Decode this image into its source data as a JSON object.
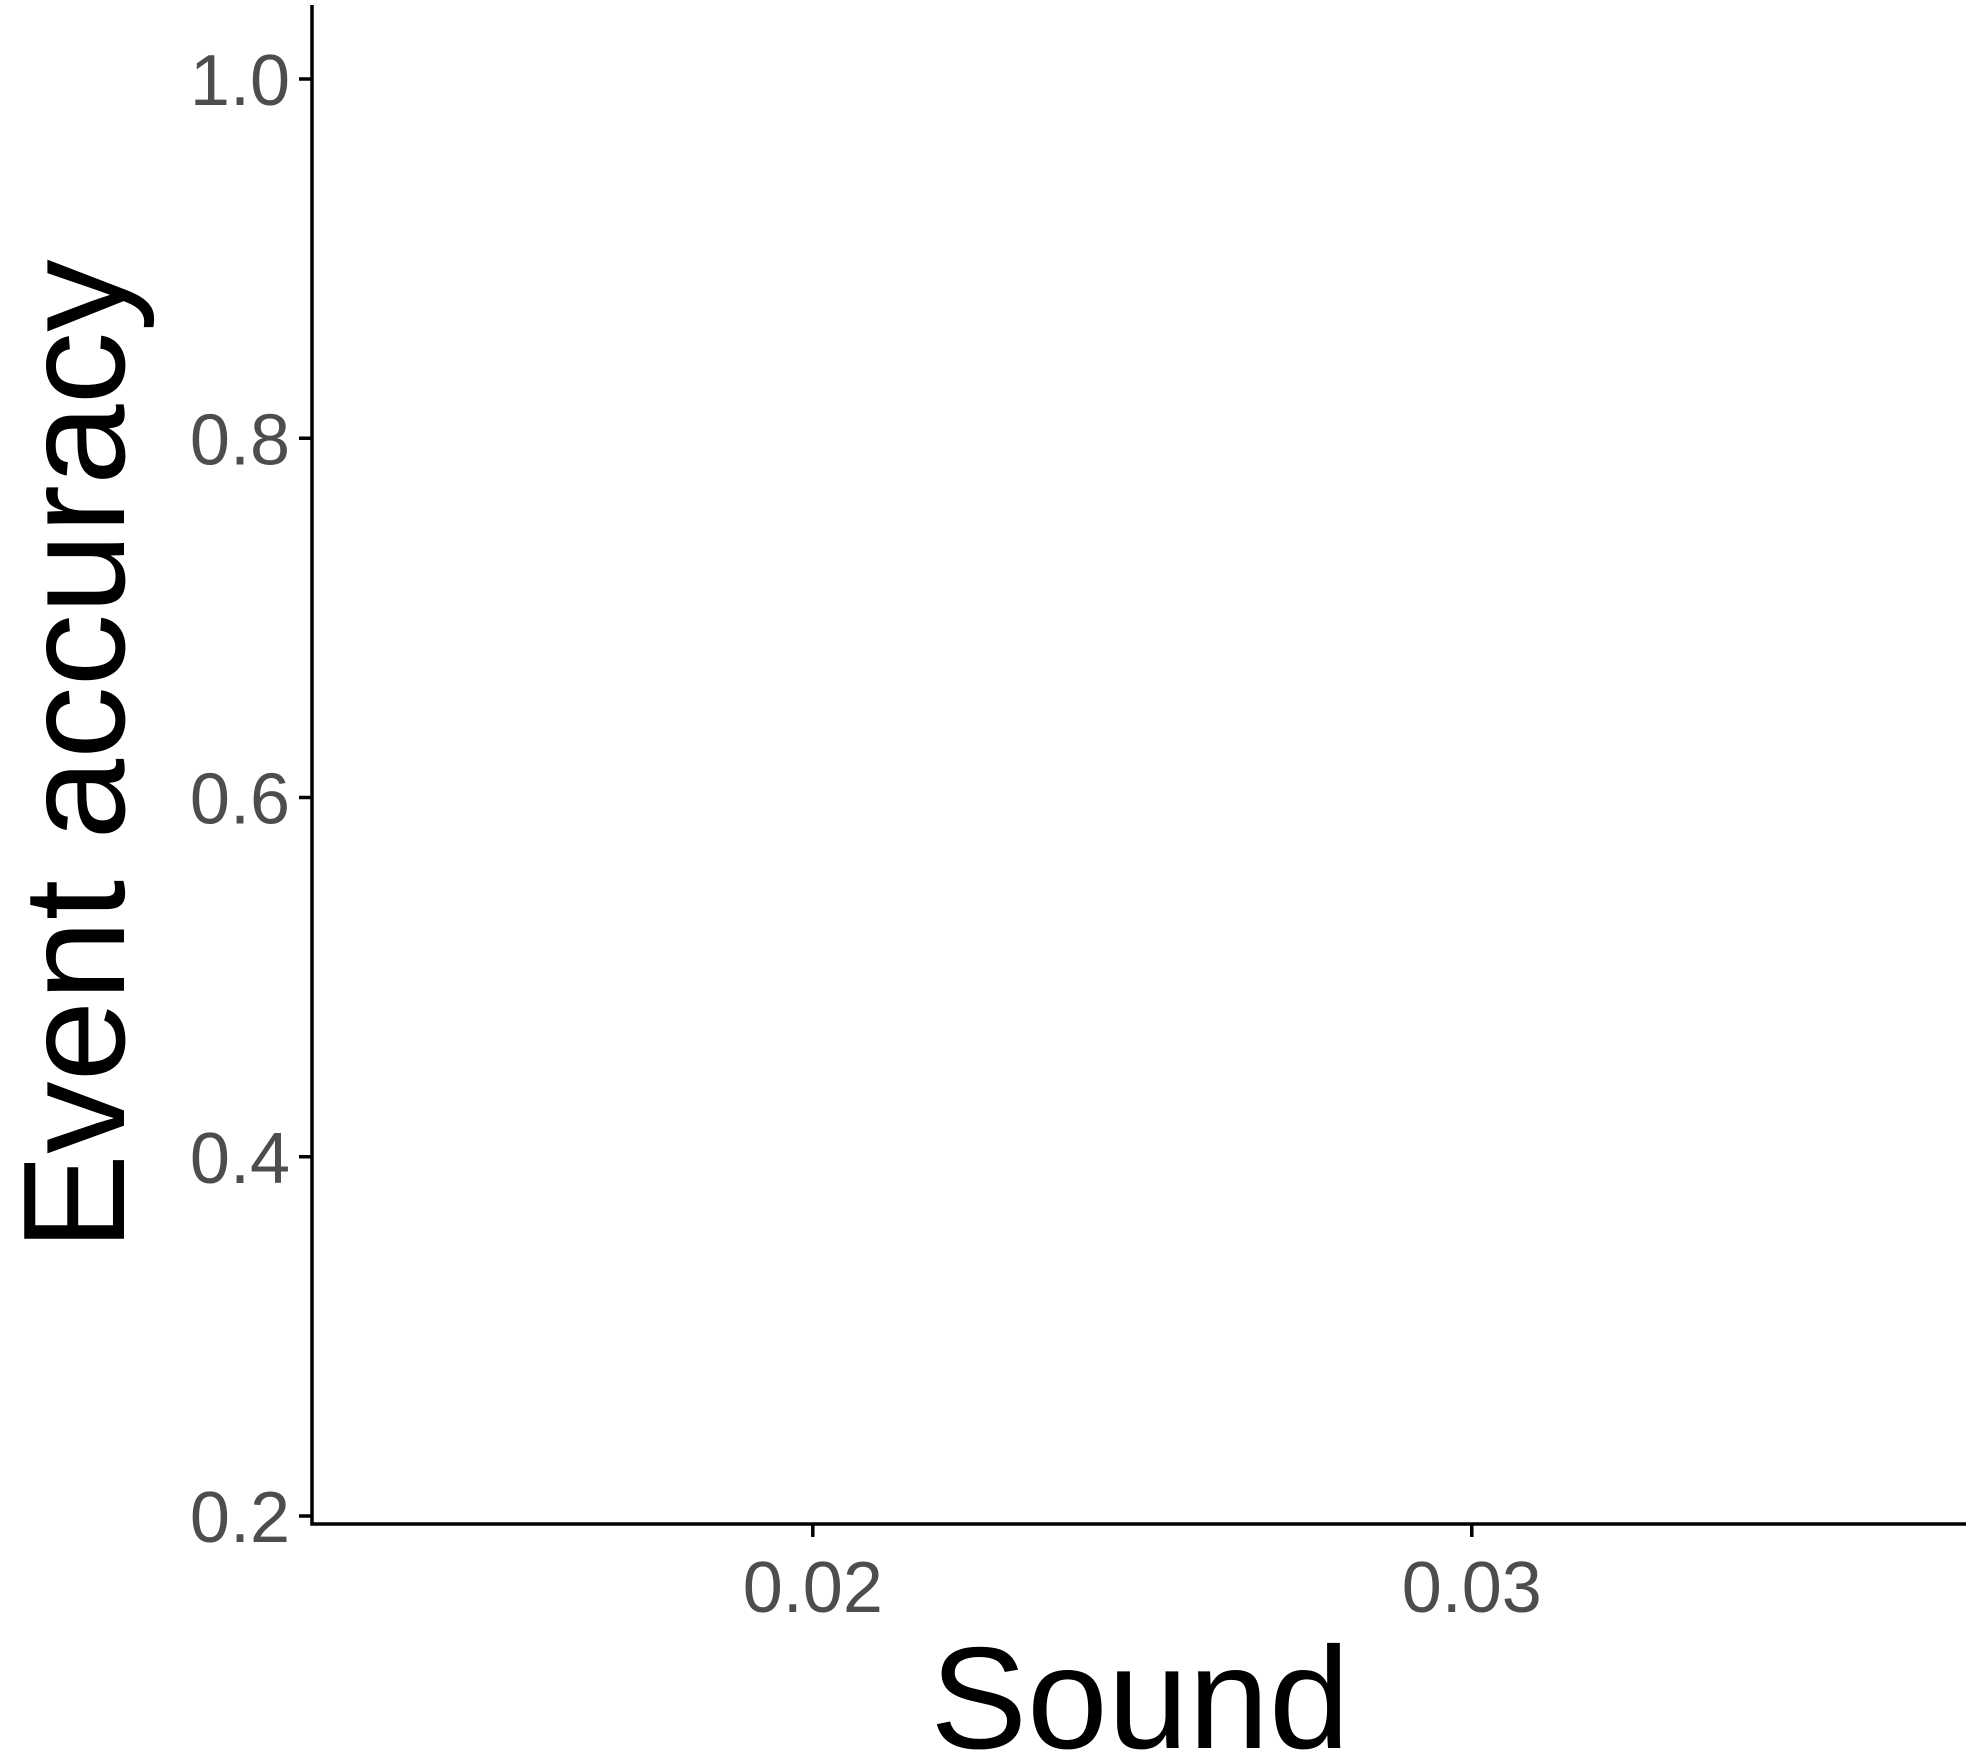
{
  "chart_data": {
    "type": "scatter",
    "title": "",
    "xlabel": "Sound",
    "ylabel": "Event accuracy",
    "x_ticks": [
      0.02,
      0.03
    ],
    "x_tick_labels": [
      "0.02",
      "0.03"
    ],
    "y_ticks": [
      0.2,
      0.4,
      0.6,
      0.8,
      1.0
    ],
    "y_tick_labels": [
      "0.2",
      "0.4",
      "0.6",
      "0.8",
      "1.0"
    ],
    "xlim": [
      0.0124,
      0.0375
    ],
    "ylim": [
      0.2,
      1.04
    ],
    "grid": false,
    "legend": "none",
    "series": [],
    "colors": {
      "axis": "#000000",
      "tick_label": "#4d4d4d",
      "axis_title": "#000000",
      "background": "#ffffff"
    }
  }
}
